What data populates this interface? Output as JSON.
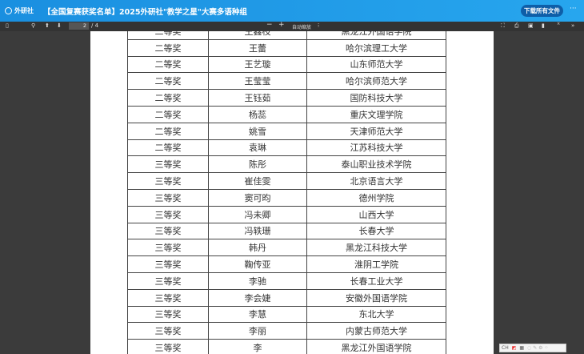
{
  "header": {
    "logo_text": "外研社",
    "title": "【全国复赛获奖名单】2025外研社\"教学之星\"大赛多语种组",
    "download_all": "下载所有文件",
    "more": "···"
  },
  "toolbar": {
    "page_current": "2",
    "page_total": "/ 4",
    "zoom_label": "自动缩放",
    "zoom_out": "−",
    "zoom_in": "+"
  },
  "table": {
    "rows": [
      [
        "二等奖",
        "王鑫枝",
        "黑龙江外国语学院"
      ],
      [
        "二等奖",
        "王蕾",
        "哈尔滨理工大学"
      ],
      [
        "二等奖",
        "王艺璇",
        "山东师范大学"
      ],
      [
        "二等奖",
        "王莹莹",
        "哈尔滨师范大学"
      ],
      [
        "二等奖",
        "王钰茹",
        "国防科技大学"
      ],
      [
        "二等奖",
        "杨蕊",
        "重庆文理学院"
      ],
      [
        "二等奖",
        "姚雪",
        "天津师范大学"
      ],
      [
        "二等奖",
        "袁琳",
        "江苏科技大学"
      ],
      [
        "三等奖",
        "陈彤",
        "泰山职业技术学院"
      ],
      [
        "三等奖",
        "崔佳雯",
        "北京语言大学"
      ],
      [
        "三等奖",
        "窦可昀",
        "德州学院"
      ],
      [
        "三等奖",
        "冯未卿",
        "山西大学"
      ],
      [
        "三等奖",
        "冯轶珊",
        "长春大学"
      ],
      [
        "三等奖",
        "韩丹",
        "黑龙江科技大学"
      ],
      [
        "三等奖",
        "鞠传亚",
        "淮阴工学院"
      ],
      [
        "三等奖",
        "李驰",
        "长春工业大学"
      ],
      [
        "三等奖",
        "李会婕",
        "安徽外国语学院"
      ],
      [
        "三等奖",
        "李慧",
        "东北大学"
      ],
      [
        "三等奖",
        "李丽",
        "内蒙古师范大学"
      ],
      [
        "三等奖",
        "李",
        "黑龙江外国语学院"
      ]
    ]
  },
  "ime": {
    "label": "CH"
  }
}
